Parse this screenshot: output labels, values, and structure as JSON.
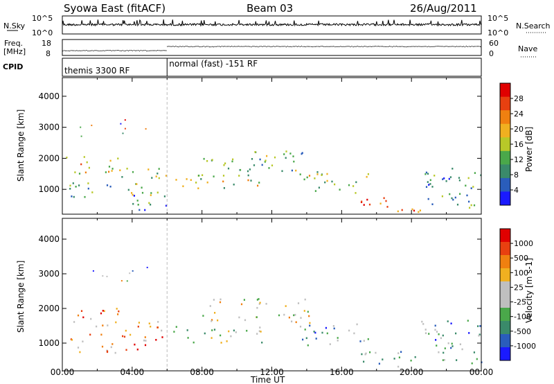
{
  "header": {
    "title": "Syowa East (fitACF)",
    "beam": "Beam 03",
    "date": "26/Aug/2011"
  },
  "top_panels": {
    "nsky_label": "N.Sky",
    "nsky_ticks": [
      "10^5",
      "10^0"
    ],
    "nsearch_label": "N.Search",
    "nsearch_ticks": [
      "10^5",
      "10^0"
    ],
    "freq_label_line1": "Freq.",
    "freq_label_line2": "[MHz]",
    "freq_ticks": [
      "18",
      "8"
    ],
    "nave_label": "Nave",
    "nave_ticks": [
      "60",
      "0"
    ],
    "cpid_label": "CPID",
    "cpid_segments": [
      {
        "label": "themis 3300 RF",
        "start_hour": 0,
        "end_hour": 6
      },
      {
        "label": "normal (fast) -151 RF",
        "start_hour": 6,
        "end_hour": 24
      }
    ]
  },
  "colors": {
    "power_scale": [
      "#1a1aff",
      "#2a5dbb",
      "#3a8a6a",
      "#4aa84a",
      "#b8c828",
      "#f0b020",
      "#f08010",
      "#e84010",
      "#e00000"
    ],
    "velocity_scale": [
      "#1a1aff",
      "#2a5dbb",
      "#3a8a6a",
      "#4aa84a",
      "#bfbfbf",
      "#bfbfbf",
      "#f0b020",
      "#f08010",
      "#e84010",
      "#e00000"
    ]
  },
  "chart_data": [
    {
      "type": "heatmap",
      "title": "",
      "xlabel": "",
      "ylabel": "Slant Range [km]",
      "x_ticks": [
        "00:00",
        "04:00",
        "08:00",
        "12:00",
        "16:00",
        "20:00",
        "00:00"
      ],
      "y_ticks": [
        "1000",
        "2000",
        "3000",
        "4000"
      ],
      "xlim_hours": [
        0,
        24
      ],
      "ylim_km": [
        200,
        4600
      ],
      "colorbar_label": "Power [dB]",
      "colorbar_ticks": [
        "28",
        "24",
        "20",
        "16",
        "12",
        "8",
        "4"
      ],
      "colorbar_range": [
        0,
        30
      ],
      "regions": [
        {
          "t0": 0.2,
          "t1": 3.2,
          "r0": 1500,
          "r1": 2100,
          "level": 0.6
        },
        {
          "t0": 0.3,
          "t1": 2.8,
          "r0": 700,
          "r1": 1300,
          "level": 0.35
        },
        {
          "t0": 3.2,
          "t1": 6.0,
          "r0": 800,
          "r1": 1700,
          "level": 0.45
        },
        {
          "t0": 4.0,
          "t1": 6.0,
          "r0": 300,
          "r1": 900,
          "level": 0.3
        },
        {
          "t0": 6.3,
          "t1": 11.5,
          "r0": 1000,
          "r1": 1500,
          "level": 0.5
        },
        {
          "t0": 8.0,
          "t1": 14.2,
          "r0": 1600,
          "r1": 2300,
          "level": 0.35
        },
        {
          "t0": 13.5,
          "t1": 17.5,
          "r0": 900,
          "r1": 1600,
          "level": 0.45
        },
        {
          "t0": 17.0,
          "t1": 20.5,
          "r0": 300,
          "r1": 800,
          "level": 0.75
        },
        {
          "t0": 20.5,
          "t1": 24.0,
          "r0": 400,
          "r1": 1700,
          "level": 0.3
        }
      ]
    },
    {
      "type": "heatmap",
      "title": "",
      "xlabel": "Time UT",
      "ylabel": "Slant Range [km]",
      "x_ticks": [
        "00:00",
        "04:00",
        "08:00",
        "12:00",
        "16:00",
        "20:00",
        "00:00"
      ],
      "y_ticks": [
        "1000",
        "2000",
        "3000",
        "4000"
      ],
      "xlim_hours": [
        0,
        24
      ],
      "ylim_km": [
        200,
        4600
      ],
      "colorbar_label": "Velocity [m s-1]",
      "colorbar_ticks": [
        "1000",
        "500",
        "100",
        "25",
        "-25",
        "-100",
        "-500",
        "-1000"
      ],
      "colorbar_range": [
        -1000,
        1000
      ],
      "regions": [
        {
          "t0": 0.2,
          "t1": 3.2,
          "r0": 1500,
          "r1": 2100,
          "level": 0.7
        },
        {
          "t0": 0.3,
          "t1": 3.0,
          "r0": 700,
          "r1": 1300,
          "level": 0.65
        },
        {
          "t0": 3.2,
          "t1": 6.0,
          "r0": 800,
          "r1": 1700,
          "level": 0.75
        },
        {
          "t0": 6.3,
          "t1": 11.5,
          "r0": 1000,
          "r1": 1500,
          "level": 0.48
        },
        {
          "t0": 8.0,
          "t1": 14.2,
          "r0": 1600,
          "r1": 2300,
          "level": 0.5
        },
        {
          "t0": 13.5,
          "t1": 17.5,
          "r0": 900,
          "r1": 1600,
          "level": 0.25
        },
        {
          "t0": 17.0,
          "t1": 20.5,
          "r0": 300,
          "r1": 800,
          "level": 0.3
        },
        {
          "t0": 20.5,
          "t1": 24.0,
          "r0": 400,
          "r1": 1700,
          "level": 0.28
        }
      ]
    }
  ]
}
